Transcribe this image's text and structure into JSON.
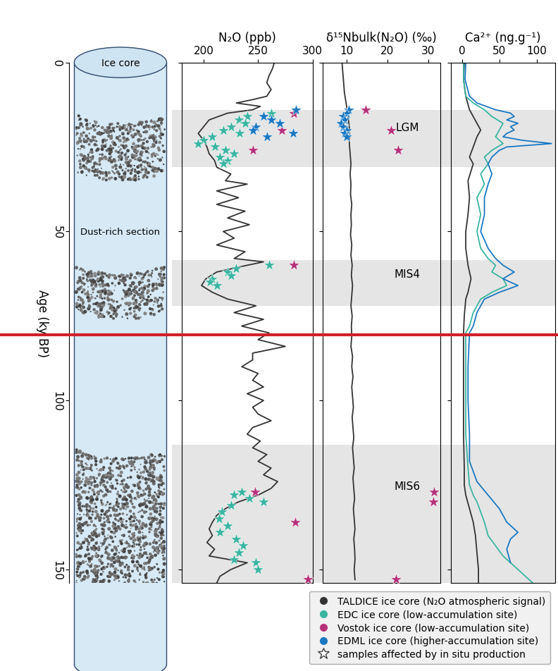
{
  "y_axis": {
    "label": "Age (ky BP)",
    "ylim": [
      154,
      0
    ],
    "yticks": [
      0,
      50,
      100,
      150
    ]
  },
  "ice_core": {
    "labels": [
      "Ice core",
      "Dust-rich section"
    ]
  },
  "bands": [
    {
      "label": "LGM",
      "from": 14,
      "to": 31
    },
    {
      "label": "MIS4",
      "from": 58.5,
      "to": 72
    },
    {
      "label": "MIS6",
      "from": 113,
      "to": 154
    }
  ],
  "reference_line": {
    "age": 80.5,
    "color": "#d0202a"
  },
  "legend": "lower right",
  "legend_entries": [
    {
      "name": "TALDICE ice core (N₂O atmospheric signal)",
      "color": "#333333",
      "marker": "circle"
    },
    {
      "name": "EDC ice core (low-accumulation site)",
      "color": "#3ab5a0",
      "marker": "circle"
    },
    {
      "name": "Vostok ice core (low-accumulation site)",
      "color": "#b5317a",
      "marker": "circle"
    },
    {
      "name": "EDML ice core (higher-accumulation site)",
      "color": "#1a78c2",
      "marker": "circle"
    },
    {
      "name": "samples affected by in situ production",
      "color": "#444444",
      "marker": "star"
    }
  ],
  "chart_data": [
    {
      "type": "line",
      "xlabel": "N₂O (ppb)",
      "xlim": [
        180,
        300
      ],
      "xticks": [
        200,
        250,
        300
      ],
      "tick_labels": "x",
      "series": [
        {
          "name": "TALDICE ice core (N₂O atmospheric signal)",
          "type": "line",
          "color": "#333333",
          "age": [
            0,
            2,
            4,
            6,
            8,
            10,
            11,
            12,
            13,
            14,
            15,
            17,
            19,
            21,
            23,
            25,
            27,
            29,
            31,
            33,
            35,
            36,
            38,
            40,
            42,
            44,
            46,
            48,
            50,
            52,
            54,
            56,
            58,
            59,
            60,
            62,
            64,
            66,
            68,
            70,
            72,
            74,
            76,
            78,
            80,
            82,
            84,
            86,
            88,
            90,
            92,
            94,
            96,
            98,
            100,
            102,
            104,
            106,
            108,
            110,
            112,
            114,
            116,
            118,
            120,
            122,
            124,
            126,
            128,
            130,
            132,
            134,
            136,
            138,
            140,
            142,
            144,
            146,
            148,
            150,
            152,
            154
          ],
          "values": [
            265,
            263,
            260,
            258,
            262,
            258,
            245,
            230,
            252,
            245,
            222,
            205,
            200,
            195,
            200,
            203,
            205,
            210,
            212,
            225,
            220,
            240,
            212,
            232,
            212,
            238,
            222,
            242,
            218,
            228,
            212,
            238,
            228,
            255,
            240,
            212,
            202,
            198,
            208,
            222,
            248,
            228,
            255,
            235,
            260,
            250,
            275,
            245,
            245,
            235,
            250,
            245,
            255,
            240,
            255,
            245,
            250,
            262,
            245,
            240,
            252,
            245,
            258,
            250,
            262,
            255,
            268,
            262,
            250,
            232,
            220,
            212,
            208,
            205,
            208,
            203,
            210,
            205,
            240,
            225,
            215,
            212
          ]
        },
        {
          "name": "EDC ice core (low-accumulation site)",
          "type": "scatter",
          "marker": "star",
          "color": "#3ab5a0",
          "age": [
            15,
            16,
            17,
            18,
            19,
            20,
            21,
            22,
            23,
            24,
            25,
            26,
            27,
            28,
            29,
            30,
            60,
            61,
            62,
            63,
            64,
            65,
            66,
            127,
            128,
            129,
            130,
            131,
            133,
            135,
            137,
            139,
            141,
            143,
            145,
            147,
            148,
            150
          ],
          "values": [
            262,
            240,
            232,
            238,
            225,
            218,
            233,
            208,
            200,
            195,
            210,
            220,
            228,
            215,
            222,
            218,
            260,
            230,
            222,
            225,
            208,
            206,
            212,
            235,
            228,
            242,
            255,
            225,
            217,
            214,
            222,
            215,
            230,
            236,
            232,
            228,
            248,
            250
          ]
        },
        {
          "name": "Vostok ice core (low-accumulation site)",
          "type": "scatter",
          "marker": "star",
          "color": "#b5317a",
          "age": [
            15,
            20,
            26,
            60,
            127,
            136,
            153
          ],
          "values": [
            283,
            272,
            245,
            283,
            247,
            284,
            296
          ]
        },
        {
          "name": "EDML ice core (higher-accumulation site)",
          "type": "scatter",
          "marker": "star",
          "color": "#1a78c2",
          "age": [
            14,
            16,
            17,
            18,
            19,
            20,
            21,
            22
          ],
          "values": [
            285,
            255,
            262,
            270,
            248,
            245,
            282,
            258
          ]
        }
      ]
    },
    {
      "type": "line",
      "xlabel": "δ¹⁵Nbulk(N₂O) (‰)",
      "xlim": [
        4,
        33
      ],
      "xticks": [
        10,
        20,
        30
      ],
      "tick_labels": "x",
      "series": [
        {
          "name": "TALDICE ice core (N₂O atmospheric signal)",
          "type": "line",
          "color": "#333333",
          "age": [
            0,
            3,
            6,
            9,
            12,
            15,
            18,
            21,
            24,
            27,
            30,
            33,
            36,
            39,
            42,
            45,
            48,
            51,
            54,
            57,
            60,
            63,
            66,
            69,
            72,
            75,
            78,
            81,
            84,
            87,
            90,
            93,
            96,
            99,
            102,
            105,
            108,
            111,
            114,
            117,
            120,
            123,
            126,
            129,
            132,
            135,
            138,
            141,
            144,
            147,
            150,
            153
          ],
          "values": [
            8.8,
            9.0,
            9.2,
            9.4,
            9.8,
            10.2,
            10.5,
            10.7,
            10.6,
            10.8,
            11.0,
            10.8,
            11.0,
            10.9,
            11.2,
            11.0,
            11.1,
            10.9,
            11.2,
            11.0,
            11.3,
            11.1,
            11.4,
            11.2,
            11.0,
            11.3,
            11.1,
            11.2,
            11.0,
            11.4,
            11.2,
            11.5,
            11.2,
            11.4,
            11.6,
            11.3,
            11.5,
            11.7,
            11.4,
            11.6,
            11.8,
            11.5,
            11.7,
            11.9,
            11.6,
            11.8,
            12.0,
            11.7,
            11.9,
            12.0,
            11.8,
            12.0
          ]
        },
        {
          "name": "EDML ice core (higher-accumulation site)",
          "type": "scatter",
          "marker": "star",
          "color": "#1a78c2",
          "age": [
            14,
            15,
            16,
            17,
            18,
            19,
            20,
            21,
            22
          ],
          "values": [
            10.5,
            10.0,
            9.0,
            9.5,
            8.5,
            9.0,
            10.0,
            9.5,
            10.0
          ]
        },
        {
          "name": "Vostok ice core (low-accumulation site)",
          "type": "scatter",
          "marker": "star",
          "color": "#b5317a",
          "age": [
            14,
            20,
            26,
            127,
            130,
            153
          ],
          "values": [
            14.6,
            20.9,
            22.6,
            31.5,
            31.2,
            22.0
          ]
        }
      ]
    },
    {
      "type": "line",
      "xlabel": "Ca²⁺ (ng.g⁻¹)",
      "xlim": [
        -15,
        125
      ],
      "xticks": [
        0,
        50,
        100
      ],
      "tick_labels": "x",
      "series": [
        {
          "name": "TALDICE ice core (N₂O atmospheric signal)",
          "type": "line",
          "color": "#333333",
          "age": [
            0,
            5,
            10,
            14,
            18,
            20,
            22,
            25,
            28,
            30,
            35,
            40,
            45,
            50,
            55,
            60,
            64,
            68,
            70,
            75,
            80,
            90,
            100,
            110,
            120,
            125,
            128,
            132,
            136,
            140,
            145,
            150,
            154
          ],
          "values": [
            3,
            2,
            5,
            10,
            20,
            25,
            20,
            15,
            10,
            15,
            8,
            10,
            8,
            5,
            5,
            8,
            12,
            8,
            5,
            3,
            2,
            2,
            2,
            2,
            3,
            3,
            5,
            10,
            15,
            18,
            20,
            22,
            22
          ]
        },
        {
          "name": "EDC ice core (low-accumulation site)",
          "type": "line",
          "color": "#3ab5a0",
          "age": [
            0,
            5,
            10,
            12,
            14,
            16,
            18,
            20,
            22,
            24,
            26,
            28,
            30,
            33,
            36,
            40,
            45,
            50,
            55,
            58,
            60,
            62,
            64,
            66,
            68,
            70,
            74,
            78,
            80,
            90,
            100,
            110,
            120,
            125,
            128,
            130,
            133,
            136,
            140,
            143,
            146,
            149,
            152,
            154
          ],
          "values": [
            2,
            2,
            5,
            15,
            30,
            40,
            55,
            50,
            45,
            55,
            40,
            30,
            35,
            25,
            30,
            20,
            25,
            20,
            25,
            35,
            45,
            40,
            55,
            60,
            40,
            25,
            15,
            10,
            5,
            5,
            5,
            5,
            8,
            10,
            15,
            20,
            25,
            30,
            35,
            45,
            55,
            70,
            85,
            95
          ]
        },
        {
          "name": "EDML ice core (higher-accumulation site)",
          "type": "line",
          "color": "#1a78c2",
          "age": [
            0,
            5,
            10,
            12,
            14,
            15,
            16,
            17,
            18,
            19,
            20,
            21,
            22,
            23,
            24,
            25,
            26,
            28,
            30,
            33,
            36,
            40,
            45,
            50,
            55,
            58,
            60,
            62,
            64,
            66,
            68,
            70,
            74,
            78,
            80,
            90,
            100,
            110,
            118,
            124,
            128,
            132,
            136,
            139,
            141,
            144,
            148
          ],
          "values": [
            5,
            4,
            10,
            20,
            45,
            65,
            70,
            60,
            75,
            65,
            70,
            60,
            55,
            80,
            120,
            60,
            50,
            40,
            35,
            40,
            35,
            30,
            30,
            25,
            35,
            45,
            55,
            70,
            55,
            75,
            50,
            30,
            20,
            15,
            10,
            8,
            8,
            10,
            10,
            20,
            35,
            50,
            60,
            75,
            65,
            60,
            65
          ]
        }
      ]
    }
  ]
}
